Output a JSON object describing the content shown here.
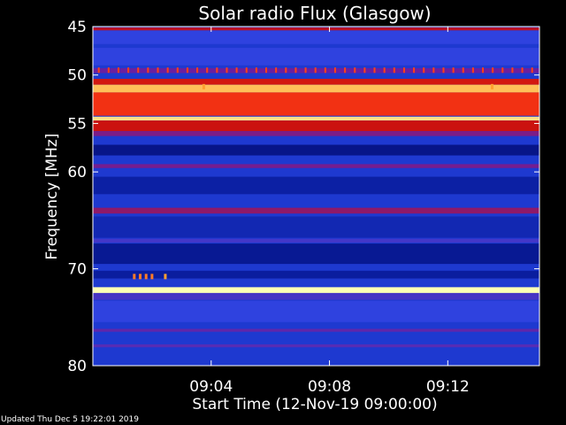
{
  "chart_data": {
    "type": "heatmap",
    "title": "Solar radio Flux (Glasgow)",
    "xlabel": "Start Time (12-Nov-19 09:00:00)",
    "ylabel": "Frequency [MHz]",
    "x_unit": "minutes after 09:00:00",
    "xlim": [
      0,
      15.1
    ],
    "ylim": [
      45,
      80
    ],
    "x_ticks": [
      {
        "value": 4,
        "label": "09:04"
      },
      {
        "value": 8,
        "label": "09:08"
      },
      {
        "value": 12,
        "label": "09:12"
      }
    ],
    "y_ticks": [
      {
        "value": 45,
        "label": "45"
      },
      {
        "value": 50,
        "label": "50"
      },
      {
        "value": 55,
        "label": "55"
      },
      {
        "value": 60,
        "label": "60"
      },
      {
        "value": 70,
        "label": "70"
      },
      {
        "value": 80,
        "label": "80"
      }
    ],
    "colormap": [
      "#000050",
      "#0a1ea0",
      "#2846e6",
      "#6e1e9b",
      "#c80f0f",
      "#ff3c14",
      "#ffa532",
      "#ffffb4"
    ],
    "background_level": 0.24,
    "bands": [
      {
        "freq_from": 45.1,
        "freq_to": 45.4,
        "level": 0.55
      },
      {
        "freq_from": 45.4,
        "freq_to": 46.8,
        "level": 0.3
      },
      {
        "freq_from": 47.2,
        "freq_to": 49.0,
        "level": 0.3
      },
      {
        "freq_from": 49.3,
        "freq_to": 49.8,
        "level": 0.42
      },
      {
        "freq_from": 50.4,
        "freq_to": 51.0,
        "level": 0.6
      },
      {
        "freq_from": 51.0,
        "freq_to": 51.8,
        "level": 0.9
      },
      {
        "freq_from": 51.8,
        "freq_to": 54.2,
        "level": 0.68
      },
      {
        "freq_from": 54.3,
        "freq_to": 54.7,
        "level": 0.95
      },
      {
        "freq_from": 54.7,
        "freq_to": 55.8,
        "level": 0.58
      },
      {
        "freq_from": 55.8,
        "freq_to": 56.3,
        "level": 0.45
      },
      {
        "freq_from": 57.2,
        "freq_to": 58.3,
        "level": 0.1
      },
      {
        "freq_from": 59.2,
        "freq_to": 59.6,
        "level": 0.44
      },
      {
        "freq_from": 60.5,
        "freq_to": 62.3,
        "level": 0.15
      },
      {
        "freq_from": 63.7,
        "freq_to": 64.3,
        "level": 0.48
      },
      {
        "freq_from": 64.6,
        "freq_to": 66.8,
        "level": 0.18
      },
      {
        "freq_from": 66.9,
        "freq_to": 67.3,
        "level": 0.34
      },
      {
        "freq_from": 67.4,
        "freq_to": 69.5,
        "level": 0.12
      },
      {
        "freq_from": 70.2,
        "freq_to": 71.0,
        "level": 0.14
      },
      {
        "freq_from": 71.9,
        "freq_to": 72.5,
        "level": 1.0
      },
      {
        "freq_from": 72.5,
        "freq_to": 73.2,
        "level": 0.35
      },
      {
        "freq_from": 73.3,
        "freq_to": 75.5,
        "level": 0.3
      },
      {
        "freq_from": 76.2,
        "freq_to": 76.5,
        "level": 0.4
      },
      {
        "freq_from": 77.8,
        "freq_to": 78.1,
        "level": 0.38
      }
    ],
    "events": [
      {
        "time": 3.75,
        "freq": 51.2,
        "level": 0.85
      },
      {
        "time": 13.5,
        "freq": 51.2,
        "level": 0.85
      },
      {
        "time": 1.4,
        "freq": 70.8,
        "level": 0.8
      },
      {
        "time": 1.6,
        "freq": 70.8,
        "level": 0.8
      },
      {
        "time": 1.8,
        "freq": 70.8,
        "level": 0.8
      },
      {
        "time": 2.0,
        "freq": 70.8,
        "level": 0.8
      },
      {
        "time": 2.45,
        "freq": 70.8,
        "level": 0.85
      }
    ],
    "pulse_row": {
      "freq": 49.5,
      "start_time": 0.2,
      "interval_min": 0.333,
      "level": 0.72
    },
    "grid": false,
    "legend": "none"
  },
  "footer": {
    "text": "Updated Thu Dec  5 19:22:01 2019"
  }
}
